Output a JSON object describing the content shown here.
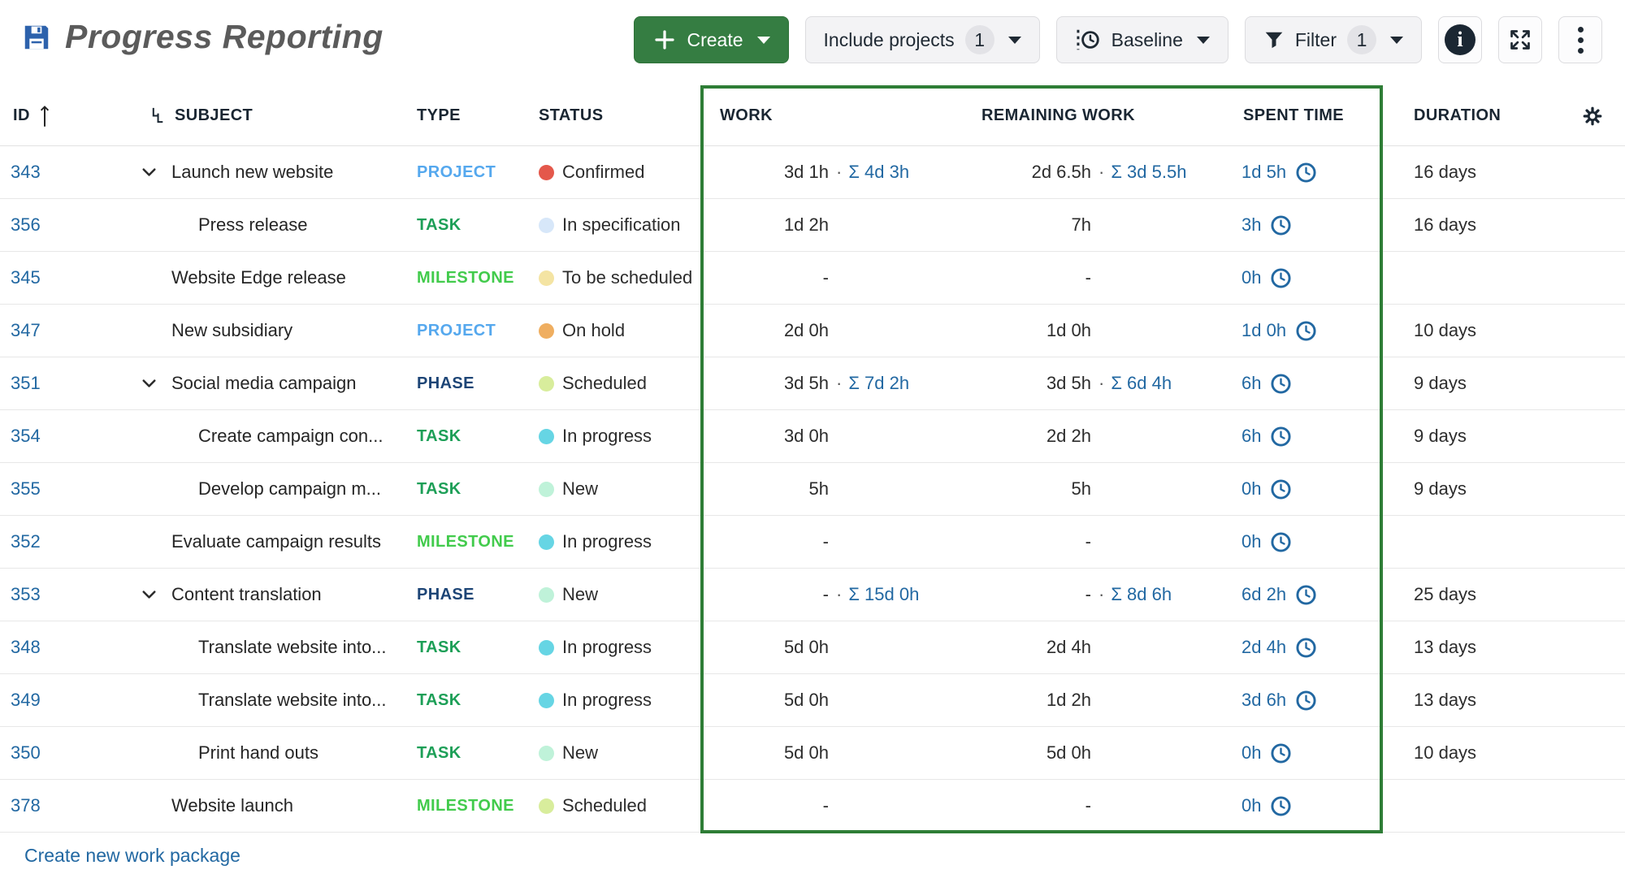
{
  "app": {
    "title": "Progress Reporting"
  },
  "toolbar": {
    "create_label": "Create",
    "include_projects_label": "Include projects",
    "include_projects_count": "1",
    "baseline_label": "Baseline",
    "filter_label": "Filter",
    "filter_count": "1"
  },
  "table": {
    "headers": {
      "id": "ID",
      "subject": "SUBJECT",
      "type": "TYPE",
      "status": "STATUS",
      "work": "WORK",
      "remaining_work": "REMAINING WORK",
      "spent_time": "SPENT TIME",
      "duration": "DURATION"
    },
    "rows": [
      {
        "id": "343",
        "indent": 0,
        "expandable": true,
        "subject": "Launch new website",
        "type": "PROJECT",
        "status": "Confirmed",
        "work": "3d 1h",
        "work_sum": "Σ 4d 3h",
        "remaining": "2d 6.5h",
        "remaining_sum": "Σ 3d 5.5h",
        "spent": "1d 5h",
        "duration": "16 days"
      },
      {
        "id": "356",
        "indent": 1,
        "expandable": false,
        "subject": "Press release",
        "type": "TASK",
        "status": "In specification",
        "work": "1d 2h",
        "work_sum": null,
        "remaining": "7h",
        "remaining_sum": null,
        "spent": "3h",
        "duration": "16 days"
      },
      {
        "id": "345",
        "indent": 0,
        "expandable": false,
        "subject": "Website Edge release",
        "type": "MILESTONE",
        "status": "To be scheduled",
        "work": "-",
        "work_sum": null,
        "remaining": "-",
        "remaining_sum": null,
        "spent": "0h",
        "duration": ""
      },
      {
        "id": "347",
        "indent": 0,
        "expandable": false,
        "subject": "New subsidiary",
        "type": "PROJECT",
        "status": "On hold",
        "work": "2d 0h",
        "work_sum": null,
        "remaining": "1d 0h",
        "remaining_sum": null,
        "spent": "1d 0h",
        "duration": "10 days"
      },
      {
        "id": "351",
        "indent": 0,
        "expandable": true,
        "subject": "Social media campaign",
        "type": "PHASE",
        "status": "Scheduled",
        "work": "3d 5h",
        "work_sum": "Σ 7d 2h",
        "remaining": "3d 5h",
        "remaining_sum": "Σ 6d 4h",
        "spent": "6h",
        "duration": "9 days"
      },
      {
        "id": "354",
        "indent": 1,
        "expandable": false,
        "subject": "Create campaign con...",
        "type": "TASK",
        "status": "In progress",
        "work": "3d 0h",
        "work_sum": null,
        "remaining": "2d 2h",
        "remaining_sum": null,
        "spent": "6h",
        "duration": "9 days"
      },
      {
        "id": "355",
        "indent": 1,
        "expandable": false,
        "subject": "Develop campaign m...",
        "type": "TASK",
        "status": "New",
        "work": "5h",
        "work_sum": null,
        "remaining": "5h",
        "remaining_sum": null,
        "spent": "0h",
        "duration": "9 days"
      },
      {
        "id": "352",
        "indent": 0,
        "expandable": false,
        "subject": "Evaluate campaign results",
        "type": "MILESTONE",
        "status": "In progress",
        "work": "-",
        "work_sum": null,
        "remaining": "-",
        "remaining_sum": null,
        "spent": "0h",
        "duration": ""
      },
      {
        "id": "353",
        "indent": 0,
        "expandable": true,
        "subject": "Content translation",
        "type": "PHASE",
        "status": "New",
        "work": "-",
        "work_sum": "Σ 15d 0h",
        "remaining": "-",
        "remaining_sum": "Σ 8d 6h",
        "spent": "6d 2h",
        "duration": "25 days"
      },
      {
        "id": "348",
        "indent": 1,
        "expandable": false,
        "subject": "Translate website into...",
        "type": "TASK",
        "status": "In progress",
        "work": "5d 0h",
        "work_sum": null,
        "remaining": "2d 4h",
        "remaining_sum": null,
        "spent": "2d 4h",
        "duration": "13 days"
      },
      {
        "id": "349",
        "indent": 1,
        "expandable": false,
        "subject": "Translate website into...",
        "type": "TASK",
        "status": "In progress",
        "work": "5d 0h",
        "work_sum": null,
        "remaining": "1d 2h",
        "remaining_sum": null,
        "spent": "3d 6h",
        "duration": "13 days"
      },
      {
        "id": "350",
        "indent": 1,
        "expandable": false,
        "subject": "Print hand outs",
        "type": "TASK",
        "status": "New",
        "work": "5d 0h",
        "work_sum": null,
        "remaining": "5d 0h",
        "remaining_sum": null,
        "spent": "0h",
        "duration": "10 days"
      },
      {
        "id": "378",
        "indent": 0,
        "expandable": false,
        "subject": "Website launch",
        "type": "MILESTONE",
        "status": "Scheduled",
        "work": "-",
        "work_sum": null,
        "remaining": "-",
        "remaining_sum": null,
        "spent": "0h",
        "duration": ""
      }
    ]
  },
  "footer": {
    "create_link": "Create new work package"
  },
  "colors": {
    "primary_green": "#357d42",
    "link_blue": "#2268a2",
    "highlight_border": "#2e7d36",
    "save_icon_blue": "#2d62ac",
    "type": {
      "PROJECT": "#55a8ee",
      "TASK": "#1d9f57",
      "MILESTONE": "#42cb4c",
      "PHASE": "#1d4576"
    },
    "status": {
      "Confirmed": "#e4584b",
      "In specification": "#d7e7f9",
      "To be scheduled": "#f4e4a3",
      "On hold": "#efae60",
      "Scheduled": "#d8ed9c",
      "In progress": "#66d5e4",
      "New": "#bff2d9"
    }
  }
}
